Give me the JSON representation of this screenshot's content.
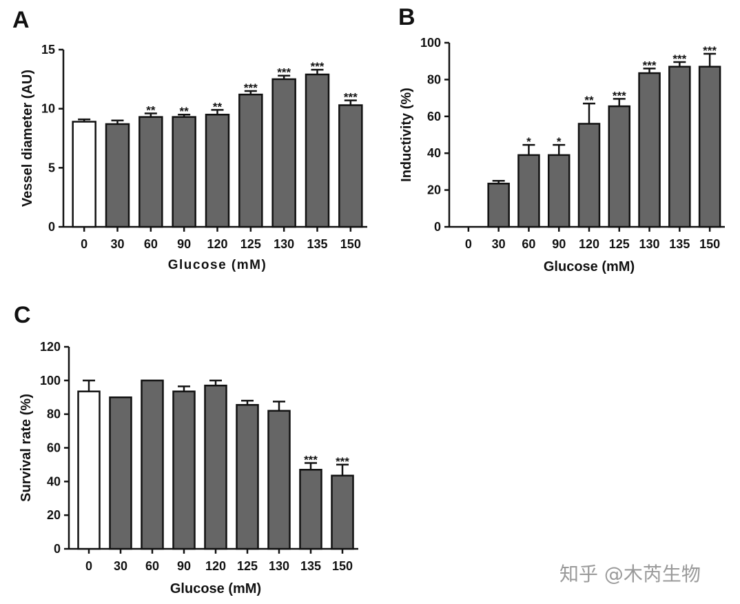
{
  "chart_data": [
    {
      "panel": "A",
      "type": "bar",
      "categories": [
        "0",
        "30",
        "60",
        "90",
        "120",
        "125",
        "130",
        "135",
        "150"
      ],
      "values": [
        8.9,
        8.7,
        9.3,
        9.3,
        9.5,
        11.2,
        12.5,
        12.9,
        10.3
      ],
      "errors": [
        0.2,
        0.3,
        0.3,
        0.2,
        0.4,
        0.3,
        0.3,
        0.4,
        0.4
      ],
      "significance": [
        "",
        "",
        "**",
        "**",
        "**",
        "***",
        "***",
        "***",
        "***"
      ],
      "bar_colors": [
        "#ffffff",
        "#666666",
        "#666666",
        "#666666",
        "#666666",
        "#666666",
        "#666666",
        "#666666",
        "#666666"
      ],
      "title": "",
      "xlabel": "Glucose (mM)",
      "ylabel": "Vessel diameter (AU)",
      "ylim": [
        0,
        15
      ],
      "yticks": [
        "0",
        "5",
        "10",
        "15"
      ]
    },
    {
      "panel": "B",
      "type": "bar",
      "categories": [
        "0",
        "30",
        "60",
        "90",
        "120",
        "125",
        "130",
        "135",
        "150"
      ],
      "values": [
        0,
        23.5,
        39,
        39,
        56,
        65.5,
        83.5,
        87,
        87
      ],
      "errors": [
        0,
        1.5,
        5.5,
        5.5,
        11,
        4,
        2.5,
        2.5,
        7
      ],
      "significance": [
        "",
        "",
        "*",
        "*",
        "**",
        "***",
        "***",
        "***",
        "***"
      ],
      "bar_colors": [
        "#666666",
        "#666666",
        "#666666",
        "#666666",
        "#666666",
        "#666666",
        "#666666",
        "#666666",
        "#666666"
      ],
      "title": "",
      "xlabel": "Glucose (mM)",
      "ylabel": "Inductivity (%)",
      "ylim": [
        0,
        100
      ],
      "yticks": [
        "0",
        "20",
        "40",
        "60",
        "80",
        "100"
      ]
    },
    {
      "panel": "C",
      "type": "bar",
      "categories": [
        "0",
        "30",
        "60",
        "90",
        "120",
        "125",
        "130",
        "135",
        "150"
      ],
      "values": [
        93.5,
        90,
        100,
        93.5,
        97,
        85.5,
        82,
        47,
        43.5
      ],
      "errors": [
        6.5,
        0,
        0,
        3,
        3,
        2.5,
        5.5,
        4,
        6.5
      ],
      "significance": [
        "",
        "",
        "",
        "",
        "",
        "",
        "",
        "***",
        "***"
      ],
      "bar_colors": [
        "#ffffff",
        "#666666",
        "#666666",
        "#666666",
        "#666666",
        "#666666",
        "#666666",
        "#666666",
        "#666666"
      ],
      "title": "",
      "xlabel": "Glucose (mM)",
      "ylabel": "Survival rate (%)",
      "ylim": [
        0,
        120
      ],
      "yticks": [
        "0",
        "20",
        "40",
        "60",
        "80",
        "100",
        "120"
      ]
    }
  ],
  "watermark": "知乎 @木芮生物",
  "colors": {
    "bar_fill": "#666666",
    "control_fill": "#ffffff",
    "stroke": "#111111"
  }
}
